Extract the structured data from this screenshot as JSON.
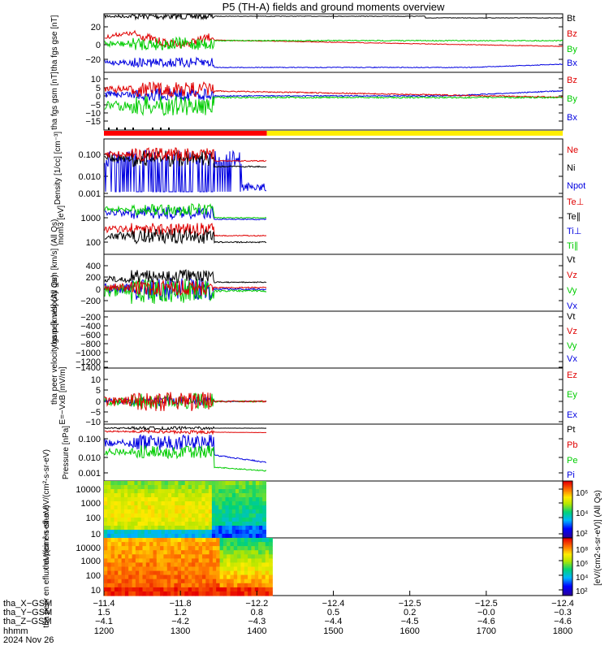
{
  "title": "P5 (TH-A) fields and ground moments overview",
  "colors": {
    "black": "#000000",
    "red": "#e00000",
    "green": "#00cc00",
    "blue": "#0000e0",
    "yellow": "#ffee00",
    "red_bar": "#ff0000"
  },
  "chart_data": [
    {
      "type": "line",
      "ylabel": "tha fgs gse [nT]",
      "yticks": [
        "20",
        "0",
        "−20"
      ],
      "legend": [
        {
          "name": "Bt",
          "color": "#000000"
        },
        {
          "name": "Bz",
          "color": "#e00000"
        },
        {
          "name": "By",
          "color": "#00cc00"
        },
        {
          "name": "Bx",
          "color": "#0000e0"
        }
      ]
    },
    {
      "type": "line",
      "ylabel": "tha fgs gsm [nT]",
      "yticks": [
        "10",
        "5",
        "0",
        "−5",
        "−10",
        "−15"
      ],
      "legend": [
        {
          "name": "Bz",
          "color": "#e00000"
        },
        {
          "name": "By",
          "color": "#00cc00"
        },
        {
          "name": "Bx",
          "color": "#0000e0"
        }
      ]
    },
    {
      "type": "line",
      "ylabel": "Density [1/cc] [cm⁻³]",
      "yscale": "log",
      "yticks": [
        "0.100",
        "0.010",
        "0.001"
      ],
      "legend": [
        {
          "name": "Ne",
          "color": "#e00000"
        },
        {
          "name": "Ni",
          "color": "#000000"
        },
        {
          "name": "Npot",
          "color": "#0000e0"
        }
      ]
    },
    {
      "type": "line",
      "ylabel": "mom3 [eV]",
      "yscale": "log",
      "yticks": [
        "1000",
        "100"
      ],
      "legend": [
        {
          "name": "Te⊥",
          "color": "#e00000"
        },
        {
          "name": "Te∥",
          "color": "#000000"
        },
        {
          "name": "Ti⊥",
          "color": "#0000e0"
        },
        {
          "name": "Ti∥",
          "color": "#00cc00"
        }
      ]
    },
    {
      "type": "line",
      "ylabel": "tha peir velocity gsm [km/s] (All Qs)",
      "yticks": [
        "400",
        "200",
        "0",
        "−200"
      ],
      "legend": [
        {
          "name": "Vt",
          "color": "#000000"
        },
        {
          "name": "Vz",
          "color": "#e00000"
        },
        {
          "name": "Vy",
          "color": "#00cc00"
        },
        {
          "name": "Vx",
          "color": "#0000e0"
        }
      ]
    },
    {
      "type": "line",
      "ylabel": "tha peer velocity gsm [km/s] (All Qs)",
      "yticks": [
        "−200",
        "−400",
        "−600",
        "−800",
        "−1000",
        "−1200",
        "−1400"
      ],
      "legend": [
        {
          "name": "Vt",
          "color": "#000000"
        },
        {
          "name": "Vz",
          "color": "#e00000"
        },
        {
          "name": "Vy",
          "color": "#00cc00"
        },
        {
          "name": "Vx",
          "color": "#0000e0"
        }
      ]
    },
    {
      "type": "line",
      "ylabel": "E=−VxB [mV/m]",
      "yticks": [
        "10",
        "5",
        "0",
        "−5",
        "−10"
      ],
      "legend": [
        {
          "name": "Ez",
          "color": "#e00000"
        },
        {
          "name": "Ey",
          "color": "#00cc00"
        },
        {
          "name": "Ex",
          "color": "#0000e0"
        }
      ]
    },
    {
      "type": "line",
      "ylabel": "Pressure [nPa]",
      "yscale": "log",
      "yticks": [
        "0.100",
        "0.010",
        "0.001"
      ],
      "legend": [
        {
          "name": "Pt",
          "color": "#000000"
        },
        {
          "name": "Pb",
          "color": "#e00000"
        },
        {
          "name": "Pe",
          "color": "#00cc00"
        },
        {
          "name": "Pi",
          "color": "#0000e0"
        }
      ]
    },
    {
      "type": "heatmap",
      "ylabel": "tha peir en eflux eV/(cm²-s-sr-eV)",
      "yscale": "log",
      "yticks": [
        "10000",
        "1000",
        "100",
        "10"
      ]
    },
    {
      "type": "heatmap",
      "ylabel": "tha peer en eflux eV/(cm²-s-sr-eV)",
      "yscale": "log",
      "yticks": [
        "10000",
        "1000",
        "100",
        "10"
      ]
    }
  ],
  "colorbar": {
    "label": "[eV/(cm2-s-sr-eV)] (All Qs)",
    "top_ticks": [
      "10⁶",
      "10⁴",
      "10²"
    ],
    "bottom_ticks": [
      "10⁸",
      "10⁶",
      "10⁴",
      "10²"
    ]
  },
  "x_axis": {
    "rows": [
      {
        "label": "tha_X−GSM",
        "values": [
          "−11.4",
          "−11.8",
          "−12.2",
          "−12.4",
          "−12.5",
          "−12.5",
          "−12.4"
        ]
      },
      {
        "label": "tha_Y−GSM",
        "values": [
          "1.5",
          "1.2",
          "0.8",
          "0.5",
          "0.2",
          "−0.0",
          "−0.3"
        ]
      },
      {
        "label": "tha_Z−GSM",
        "values": [
          "−4.1",
          "−4.2",
          "−4.3",
          "−4.4",
          "−4.5",
          "−4.6",
          "−4.6"
        ]
      },
      {
        "label": "hhmm",
        "values": [
          "1200",
          "1300",
          "1400",
          "1500",
          "1600",
          "1700",
          "1800"
        ]
      }
    ],
    "date": "2024 Nov 26"
  }
}
